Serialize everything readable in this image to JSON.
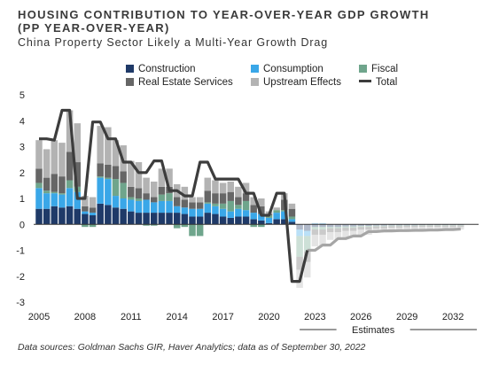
{
  "header": {
    "title_line1": "HOUSING CONTRIBUTION TO YEAR-OVER-YEAR GDP GROWTH",
    "title_line2": "(PP YEAR-OVER-YEAR)",
    "subtitle": "China Property Sector Likely a Multi-Year Growth Drag"
  },
  "legend": [
    {
      "name": "Construction",
      "color": "#1f3a68",
      "kind": "bar"
    },
    {
      "name": "Consumption",
      "color": "#3aa7e8",
      "kind": "bar"
    },
    {
      "name": "Fiscal",
      "color": "#6fa58c",
      "kind": "bar"
    },
    {
      "name": "Real Estate Services",
      "color": "#666666",
      "kind": "bar"
    },
    {
      "name": "Upstream Effects",
      "color": "#b3b3b3",
      "kind": "bar"
    },
    {
      "name": "Total",
      "color": "#3d3d3d",
      "kind": "line"
    }
  ],
  "footer": {
    "source": "Data sources: Goldman Sachs GIR, Haver Analytics; data as of September 30, 2022",
    "estimates_label": "Estimates"
  },
  "chart_data": {
    "type": "bar",
    "stacked": true,
    "ylim": [
      -3,
      5
    ],
    "yticks": [
      5,
      4,
      3,
      2,
      1,
      0,
      -1,
      -2,
      -3
    ],
    "x_tick_labels": [
      "2005",
      "2008",
      "2011",
      "2014",
      "2017",
      "2020",
      "2023",
      "2026",
      "2029",
      "2032"
    ],
    "estimates_start": "2022",
    "periods": [
      "2005H1",
      "2005H2",
      "2006H1",
      "2006H2",
      "2007H1",
      "2007H2",
      "2008H1",
      "2008H2",
      "2009H1",
      "2009H2",
      "2010H1",
      "2010H2",
      "2011H1",
      "2011H2",
      "2012H1",
      "2012H2",
      "2013H1",
      "2013H2",
      "2014H1",
      "2014H2",
      "2015H1",
      "2015H2",
      "2016H1",
      "2016H2",
      "2017H1",
      "2017H2",
      "2018H1",
      "2018H2",
      "2019H1",
      "2019H2",
      "2020H1",
      "2020H2",
      "2021H1",
      "2021H2",
      "2022H1",
      "2022H2",
      "2023H1",
      "2023H2",
      "2024H1",
      "2024H2",
      "2025H1",
      "2025H2",
      "2026H1",
      "2026H2",
      "2027H1",
      "2027H2",
      "2028H1",
      "2028H2",
      "2029H1",
      "2029H2",
      "2030H1",
      "2030H2",
      "2031H1",
      "2031H2",
      "2032H1",
      "2032H2"
    ],
    "series": [
      {
        "name": "Construction",
        "color": "#1f3a68",
        "values": [
          0.6,
          0.6,
          0.7,
          0.65,
          0.7,
          0.6,
          0.4,
          0.35,
          0.8,
          0.75,
          0.65,
          0.6,
          0.5,
          0.45,
          0.45,
          0.45,
          0.45,
          0.45,
          0.45,
          0.4,
          0.3,
          0.3,
          0.45,
          0.4,
          0.3,
          0.25,
          0.3,
          0.3,
          0.2,
          0.15,
          0.05,
          0.2,
          0.2,
          0.1,
          -0.2,
          -0.25,
          -0.1,
          -0.1,
          -0.1,
          -0.1,
          -0.08,
          -0.08,
          -0.06,
          -0.06,
          -0.05,
          -0.05,
          -0.04,
          -0.04,
          -0.04,
          -0.04,
          -0.03,
          -0.03,
          -0.03,
          -0.03,
          -0.03,
          -0.03
        ]
      },
      {
        "name": "Consumption",
        "color": "#3aa7e8",
        "values": [
          0.8,
          0.6,
          0.5,
          0.5,
          0.7,
          0.65,
          0.1,
          0.1,
          1.0,
          1.0,
          0.45,
          0.4,
          0.45,
          0.45,
          0.5,
          0.4,
          0.45,
          0.45,
          0.25,
          0.25,
          0.3,
          0.3,
          0.35,
          0.3,
          0.3,
          0.25,
          0.3,
          0.25,
          0.25,
          0.25,
          0.2,
          0.25,
          0.3,
          0.1,
          -0.25,
          -0.2,
          0.05,
          0.05,
          0.0,
          0.0,
          0.0,
          0.0,
          0.0,
          0.0,
          0.0,
          0.0,
          0.0,
          0.0,
          0.0,
          0.0,
          0.0,
          0.0,
          0.0,
          0.0,
          0.0,
          0.0
        ]
      },
      {
        "name": "Fiscal",
        "color": "#6fa58c",
        "values": [
          0.2,
          0.1,
          0.05,
          0.05,
          0.3,
          0.2,
          -0.1,
          -0.1,
          0.05,
          0.05,
          0.65,
          0.6,
          0.1,
          0.1,
          -0.05,
          -0.05,
          0.25,
          0.3,
          -0.15,
          -0.1,
          -0.45,
          -0.45,
          0.05,
          0.1,
          0.2,
          0.4,
          0.15,
          0.35,
          -0.1,
          -0.1,
          0.1,
          0.1,
          0.05,
          0.1,
          -0.8,
          -0.6,
          -0.1,
          -0.1,
          -0.05,
          -0.05,
          -0.05,
          -0.05,
          -0.04,
          -0.04,
          -0.03,
          -0.03,
          -0.03,
          -0.03,
          -0.02,
          -0.02,
          -0.02,
          -0.02,
          -0.02,
          -0.02,
          -0.02,
          -0.02
        ]
      },
      {
        "name": "Real Estate Services",
        "color": "#666666",
        "values": [
          0.55,
          0.5,
          0.7,
          0.65,
          1.1,
          0.95,
          0.2,
          0.2,
          0.5,
          0.5,
          0.5,
          0.45,
          0.4,
          0.4,
          0.25,
          0.2,
          0.3,
          0.25,
          0.35,
          0.3,
          0.25,
          0.25,
          0.45,
          0.4,
          0.4,
          0.35,
          0.3,
          0.3,
          0.3,
          0.3,
          0.05,
          0.0,
          0.4,
          0.3,
          -0.5,
          -0.4,
          -0.2,
          -0.2,
          -0.15,
          -0.15,
          -0.12,
          -0.12,
          -0.1,
          -0.1,
          -0.08,
          -0.08,
          -0.06,
          -0.06,
          -0.05,
          -0.05,
          -0.05,
          -0.05,
          -0.05,
          -0.05,
          -0.05,
          -0.05
        ]
      },
      {
        "name": "Upstream Effects",
        "color": "#b3b3b3",
        "values": [
          1.1,
          1.1,
          1.3,
          1.3,
          1.6,
          1.5,
          0.4,
          0.4,
          1.45,
          1.45,
          1.0,
          1.0,
          1.0,
          1.0,
          0.6,
          0.6,
          0.7,
          0.7,
          0.5,
          0.5,
          0.2,
          0.2,
          0.5,
          0.5,
          0.4,
          0.4,
          0.4,
          0.4,
          0.3,
          0.3,
          0.1,
          0.1,
          0.25,
          0.2,
          -0.7,
          -0.6,
          -0.45,
          -0.45,
          -0.3,
          -0.3,
          -0.25,
          -0.25,
          -0.2,
          -0.2,
          -0.15,
          -0.15,
          -0.13,
          -0.13,
          -0.12,
          -0.12,
          -0.11,
          -0.11,
          -0.1,
          -0.1,
          -0.1,
          -0.1
        ]
      },
      {
        "name": "Total",
        "color": "#3d3d3d",
        "kind": "line",
        "values": [
          3.3,
          3.3,
          3.25,
          4.4,
          4.4,
          1.0,
          1.0,
          3.95,
          3.95,
          3.3,
          3.3,
          2.4,
          2.4,
          2.0,
          2.0,
          2.45,
          2.45,
          1.3,
          1.3,
          1.1,
          1.1,
          2.4,
          2.4,
          1.75,
          1.75,
          1.75,
          1.75,
          1.2,
          1.2,
          0.35,
          0.35,
          1.2,
          1.2,
          -2.2,
          -2.2,
          -1.0,
          -1.0,
          -0.8,
          -0.8,
          -0.55,
          -0.55,
          -0.45,
          -0.45,
          -0.28,
          -0.28,
          -0.25,
          -0.25,
          -0.24,
          -0.24,
          -0.23,
          -0.23,
          -0.22,
          -0.22,
          -0.2,
          -0.2,
          -0.18
        ]
      }
    ]
  }
}
